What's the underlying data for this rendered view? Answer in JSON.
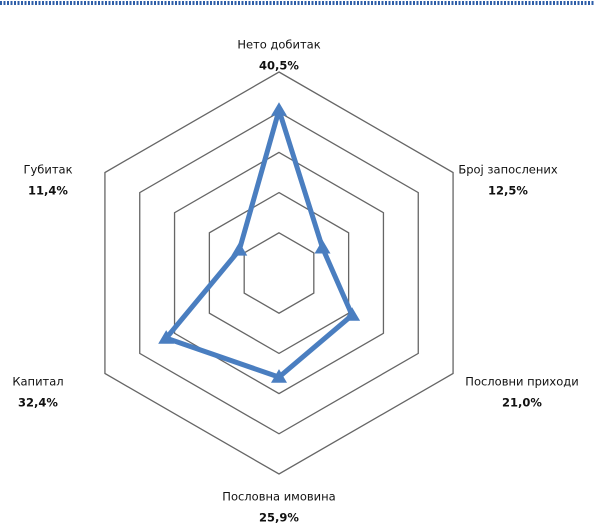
{
  "chart_data": {
    "type": "radar",
    "categories": [
      "Нето добитак",
      "Број запослених",
      "Пословни приходи",
      "Пословна имовина",
      "Капитал",
      "Губитак"
    ],
    "values": [
      40.5,
      12.5,
      21.0,
      25.9,
      32.4,
      11.4
    ],
    "value_labels": [
      "40,5%",
      "12,5%",
      "21,0%",
      "25,9%",
      "32,4%",
      "11,4%"
    ],
    "color": "#4a7ec0",
    "rlim": [
      0,
      50
    ],
    "rticks": [
      0,
      10,
      20,
      30,
      40,
      50
    ],
    "grid": true
  }
}
